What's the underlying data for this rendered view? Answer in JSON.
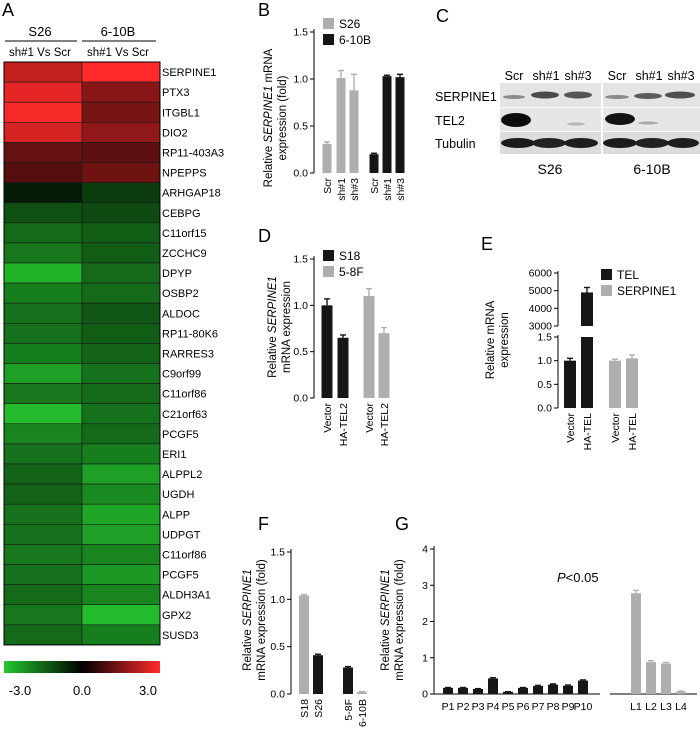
{
  "colors": {
    "heat_neg": "#25c72f",
    "heat_zero": "#000000",
    "heat_pos": "#ff2a2a",
    "bar_dark": "#161616",
    "bar_gray": "#aeaeae"
  },
  "panelA": {
    "letter": "A",
    "columns": [
      {
        "group": "S26",
        "contrast": "sh#1 Vs Scr"
      },
      {
        "group": "6-10B",
        "contrast": "sh#1 Vs Scr"
      }
    ],
    "genes": [
      "SERPINE1",
      "PTX3",
      "ITGBL1",
      "DIO2",
      "RP11-403A3",
      "NPEPPS",
      "ARHGAP18",
      "CEBPG",
      "C11orf15",
      "ZCCHC9",
      "DPYP",
      "OSBP2",
      "ALDOC",
      "RP11-80K6",
      "RARRES3",
      "C9orf99",
      "C11orf86",
      "C21orf63",
      "PCGF5",
      "ERI1",
      "ALPPL2",
      "UGDH",
      "ALPP",
      "UDPGT",
      "C11orf86",
      "PCGF5",
      "ALDH3A1",
      "GPX2",
      "SUSD3"
    ],
    "values": [
      [
        2.3,
        3.0
      ],
      [
        2.7,
        1.6
      ],
      [
        2.9,
        1.4
      ],
      [
        2.5,
        1.7
      ],
      [
        1.2,
        1.1
      ],
      [
        1.0,
        1.3
      ],
      [
        -0.4,
        -0.9
      ],
      [
        -1.2,
        -1.1
      ],
      [
        -1.6,
        -1.4
      ],
      [
        -1.8,
        -1.4
      ],
      [
        -2.7,
        -1.6
      ],
      [
        -1.9,
        -1.6
      ],
      [
        -1.7,
        -1.3
      ],
      [
        -1.7,
        -1.4
      ],
      [
        -1.9,
        -1.5
      ],
      [
        -2.4,
        -1.7
      ],
      [
        -1.8,
        -1.6
      ],
      [
        -2.8,
        -1.7
      ],
      [
        -2.0,
        -1.6
      ],
      [
        -1.7,
        -1.9
      ],
      [
        -1.5,
        -2.4
      ],
      [
        -1.5,
        -2.1
      ],
      [
        -1.7,
        -2.5
      ],
      [
        -1.7,
        -2.4
      ],
      [
        -1.8,
        -2.0
      ],
      [
        -1.7,
        -2.3
      ],
      [
        -1.6,
        -2.0
      ],
      [
        -1.8,
        -2.8
      ],
      [
        -1.6,
        -1.9
      ]
    ],
    "scale_labels": [
      "-3.0",
      "0.0",
      "3.0"
    ]
  },
  "panelB": {
    "letter": "B",
    "ylabel_pre": "Relative ",
    "ylabel_italic": "SERPINE1",
    "ylabel_post": " mRNA",
    "ylabel_line2": "expression (fold)",
    "yticks": [
      "0.0",
      "0.5",
      "1.0",
      "1.5"
    ],
    "legend": [
      "S26",
      "6-10B"
    ]
  },
  "panelC": {
    "letter": "C",
    "lane_labels": [
      "Scr",
      "sh#1",
      "sh#3",
      "Scr",
      "sh#1",
      "sh#3"
    ],
    "row_labels": [
      "SERPINE1",
      "TEL2",
      "Tubulin"
    ],
    "group_labels": [
      "S26",
      "6-10B"
    ]
  },
  "panelD": {
    "letter": "D",
    "ylabel_line1_pre": "Relative ",
    "ylabel_line1_italic": "SERPINE1",
    "ylabel_line2": "mRNA expression",
    "yticks": [
      "0.0",
      "0.5",
      "1.0",
      "1.5"
    ],
    "legend": [
      "S18",
      "5-8F"
    ]
  },
  "panelE": {
    "letter": "E",
    "ylabel_line1": "Relative mRNA",
    "ylabel_line2": "expression",
    "yticks_low": [
      "0.0",
      "0.5",
      "1.0",
      "1.5"
    ],
    "yticks_high": [
      "3000",
      "4000",
      "5000",
      "6000"
    ],
    "legend": [
      "TEL",
      "SERPINE1"
    ]
  },
  "panelF": {
    "letter": "F",
    "ylabel_line1_pre": "Relative ",
    "ylabel_line1_italic": "SERPINE1",
    "ylabel_line2": "mRNA expression (fold)",
    "yticks": [
      "0.0",
      "0.5",
      "1.0",
      "1.5"
    ]
  },
  "panelG": {
    "letter": "G",
    "ylabel_line1_pre": "Relative ",
    "ylabel_line1_italic": "SERPINE1",
    "ylabel_line2": "mRNA expression (fold)",
    "yticks": [
      "0",
      "1",
      "2",
      "3",
      "4"
    ],
    "p_italic": "P",
    "p_rest": "<0.05"
  },
  "chart_data": [
    {
      "id": "B",
      "type": "bar",
      "ylim": [
        0,
        1.5
      ],
      "categories": [
        "Scr",
        "sh#1",
        "sh#3",
        "Scr",
        "sh#1",
        "sh#3"
      ],
      "values": [
        0.31,
        1.01,
        0.88,
        0.2,
        1.03,
        1.02
      ],
      "errors": [
        0.02,
        0.08,
        0.17,
        0.01,
        0.01,
        0.03
      ],
      "series_index": [
        1,
        1,
        1,
        0,
        0,
        0
      ],
      "groups": [
        "S26",
        "S26",
        "S26",
        "6-10B",
        "6-10B",
        "6-10B"
      ]
    },
    {
      "id": "D",
      "type": "bar",
      "ylim": [
        0,
        1.5
      ],
      "categories": [
        "Vector",
        "HA-TEL2",
        "Vector",
        "HA-TEL2"
      ],
      "values": [
        1.0,
        0.65,
        1.1,
        0.7
      ],
      "errors": [
        0.07,
        0.03,
        0.08,
        0.06
      ],
      "series_index": [
        0,
        0,
        1,
        1
      ],
      "groups": [
        "S18",
        "S18",
        "5-8F",
        "5-8F"
      ]
    },
    {
      "id": "E",
      "type": "bar",
      "broken_axis": true,
      "ylim_low": [
        0,
        1.5
      ],
      "ylim_high": [
        3000,
        6000
      ],
      "categories": [
        "Vector",
        "HA-TEL",
        "Vector",
        "HA-TEL"
      ],
      "values": [
        1.0,
        4900,
        1.0,
        1.05
      ],
      "errors": [
        0.05,
        280,
        0.03,
        0.07
      ],
      "series_index": [
        0,
        0,
        1,
        1
      ],
      "groups": [
        "TEL",
        "TEL",
        "SERPINE1",
        "SERPINE1"
      ]
    },
    {
      "id": "F",
      "type": "bar",
      "ylim": [
        0,
        1.5
      ],
      "categories": [
        "S18",
        "S26",
        "5-8F",
        "6-10B"
      ],
      "values": [
        1.04,
        0.41,
        0.28,
        0.02
      ],
      "errors": [
        0.01,
        0.01,
        0.01,
        0.005
      ],
      "series_index": [
        1,
        0,
        0,
        1
      ]
    },
    {
      "id": "G",
      "type": "bar",
      "ylim": [
        0,
        4
      ],
      "categories": [
        "P1",
        "P2",
        "P3",
        "P4",
        "P5",
        "P6",
        "P7",
        "P8",
        "P9",
        "P10",
        "L1",
        "L2",
        "L3",
        "L4"
      ],
      "values": [
        0.17,
        0.17,
        0.14,
        0.43,
        0.06,
        0.17,
        0.22,
        0.26,
        0.23,
        0.37,
        2.78,
        0.88,
        0.84,
        0.07
      ],
      "errors": [
        0.01,
        0.01,
        0.01,
        0.02,
        0.005,
        0.01,
        0.02,
        0.02,
        0.02,
        0.02,
        0.08,
        0.04,
        0.03,
        0.01
      ],
      "series_index": [
        0,
        0,
        0,
        0,
        0,
        0,
        0,
        0,
        0,
        0,
        1,
        1,
        1,
        1
      ]
    }
  ]
}
